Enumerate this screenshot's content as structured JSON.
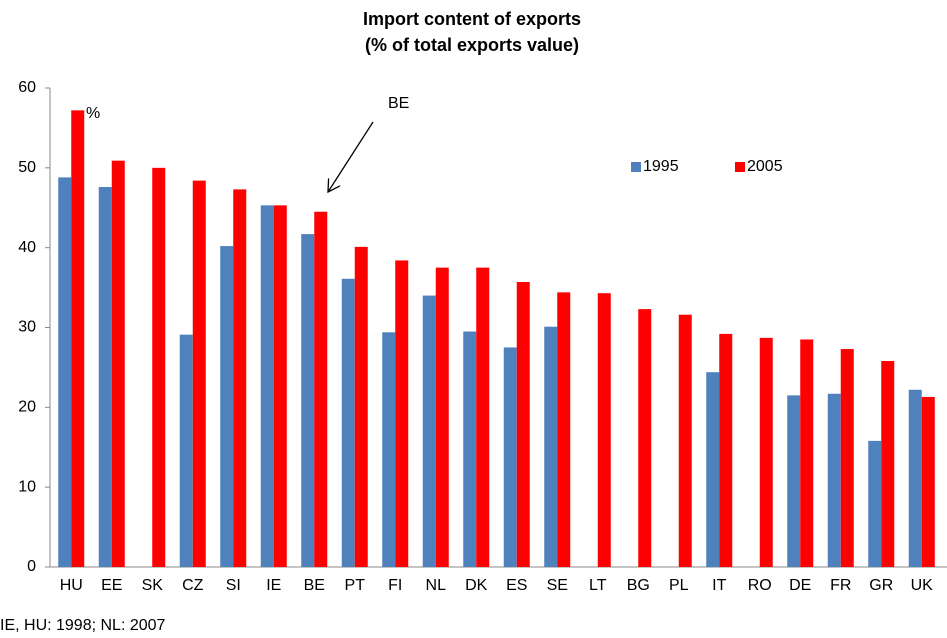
{
  "chart_data": {
    "type": "bar",
    "title": "Import content of exports",
    "subtitle": "(% of total exports value)",
    "categories": [
      "HU",
      "EE",
      "SK",
      "CZ",
      "SI",
      "IE",
      "BE",
      "PT",
      "FI",
      "NL",
      "DK",
      "ES",
      "SE",
      "LT",
      "BG",
      "PL",
      "IT",
      "RO",
      "DE",
      "FR",
      "GR",
      "UK"
    ],
    "series": [
      {
        "name": "1995",
        "color": "#4f81bd",
        "values": [
          48.8,
          47.6,
          null,
          29.1,
          40.2,
          45.3,
          41.7,
          36.1,
          29.4,
          34.0,
          29.5,
          27.5,
          30.1,
          null,
          null,
          null,
          24.4,
          null,
          21.5,
          21.7,
          15.8,
          22.2
        ]
      },
      {
        "name": "2005",
        "color": "#ff0000",
        "values": [
          57.2,
          50.9,
          50.0,
          48.4,
          47.3,
          45.3,
          44.5,
          40.1,
          38.4,
          37.5,
          37.5,
          35.7,
          34.4,
          34.3,
          32.3,
          31.6,
          29.2,
          28.7,
          28.5,
          27.3,
          25.8,
          21.3
        ]
      }
    ],
    "ylim": [
      0,
      60
    ],
    "yticks": [
      0,
      10,
      20,
      30,
      40,
      50,
      60
    ],
    "grid": false,
    "annotations": [
      "%",
      "BE"
    ],
    "footnote": "IE, HU: 1998; NL: 2007"
  }
}
